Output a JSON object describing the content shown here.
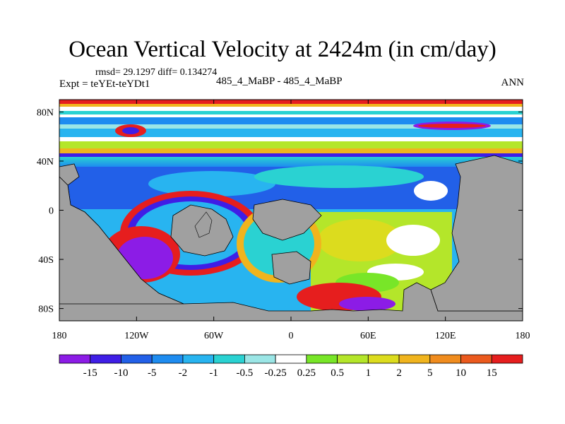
{
  "title": "Ocean Vertical Velocity at 2424m (in cm/day)",
  "stats": "rmsd= 29.1297 diff= 0.134274",
  "experiment": "Expt = teYEt-teYDt1",
  "center_label": "485_4_MaBP - 485_4_MaBP",
  "season": "ANN",
  "chart_data": {
    "type": "heatmap",
    "title": "Ocean Vertical Velocity at 2424m (in cm/day)",
    "x_ticks": [
      "180",
      "120W",
      "60W",
      "0",
      "60E",
      "120E",
      "180"
    ],
    "y_ticks": [
      "80N",
      "40N",
      "0",
      "40S",
      "80S"
    ],
    "x_range": [
      -180,
      180
    ],
    "y_range": [
      -90,
      90
    ],
    "land_color": "#a0a0a0",
    "colorbar": {
      "labels": [
        "-15",
        "-10",
        "-5",
        "-2",
        "-1",
        "-0.5",
        "-0.25",
        "0.25",
        "0.5",
        "1",
        "2",
        "5",
        "10",
        "15"
      ],
      "colors": [
        "#8c1ce6",
        "#3f1ee6",
        "#2260e8",
        "#1e8cf0",
        "#28b4f0",
        "#2ad2d2",
        "#9be6e6",
        "#ffffff",
        "#78e628",
        "#b4e62a",
        "#dcdc1e",
        "#f0b41e",
        "#f08c1e",
        "#eb5a1e",
        "#e61e1e"
      ]
    }
  }
}
